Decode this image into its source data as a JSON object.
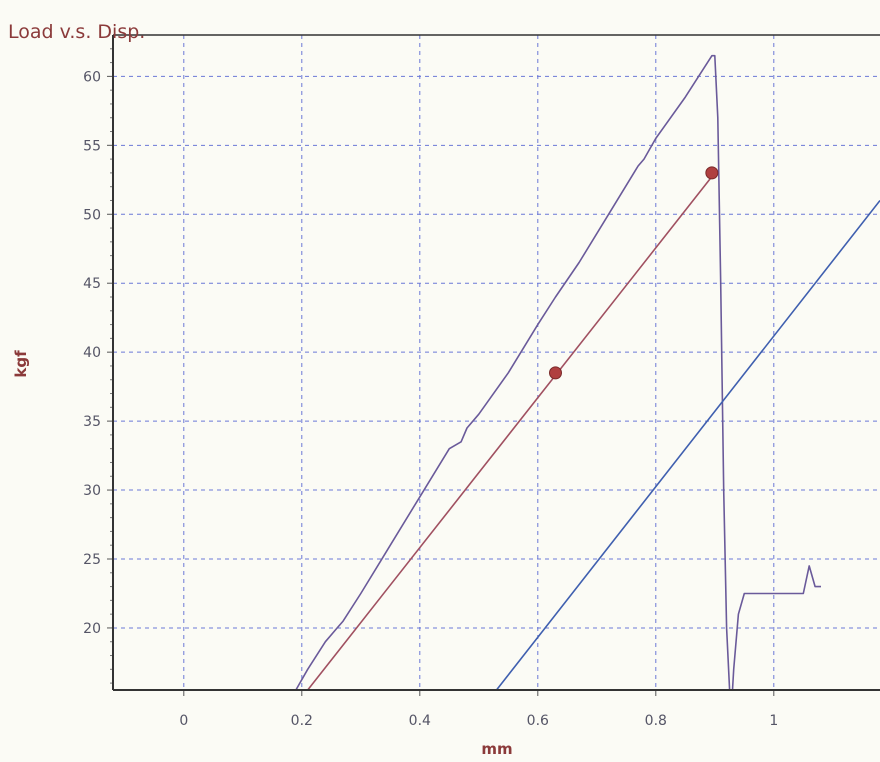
{
  "chart_data": {
    "type": "line",
    "title": "Load v.s. Disp.",
    "xlabel": "mm",
    "ylabel": "kgf",
    "xlim": [
      -0.12,
      1.18
    ],
    "ylim": [
      15.5,
      63
    ],
    "xticks": [
      "0",
      "0.2",
      "0.4",
      "0.6",
      "0.8",
      "1"
    ],
    "xtick_values": [
      0,
      0.2,
      0.4,
      0.6,
      0.8,
      1
    ],
    "yticks": [
      "20",
      "25",
      "30",
      "35",
      "40",
      "45",
      "50",
      "55",
      "60"
    ],
    "ytick_values": [
      20,
      25,
      30,
      35,
      40,
      45,
      50,
      55,
      60
    ],
    "grid": true,
    "series": [
      {
        "color": "#6a5a9a",
        "x": [
          0.19,
          0.21,
          0.24,
          0.26,
          0.27,
          0.3,
          0.35,
          0.4,
          0.45,
          0.47,
          0.48,
          0.5,
          0.55,
          0.6,
          0.63,
          0.67,
          0.72,
          0.77,
          0.78,
          0.8,
          0.85,
          0.895,
          0.9,
          0.905,
          0.91,
          0.915,
          0.92,
          0.925,
          0.93,
          0.932,
          0.94,
          0.95,
          0.97,
          1.0,
          1.03,
          1.05,
          1.06,
          1.07,
          1.08
        ],
        "y": [
          15.5,
          17.0,
          19.0,
          20.0,
          20.5,
          22.5,
          26.0,
          29.5,
          33.0,
          33.5,
          34.5,
          35.5,
          38.5,
          42.0,
          44.0,
          46.5,
          50.0,
          53.5,
          54.0,
          55.5,
          58.5,
          61.5,
          61.5,
          57.0,
          45.0,
          30.0,
          20.0,
          15.5,
          15.5,
          17.0,
          21.0,
          22.5,
          22.5,
          22.5,
          22.5,
          22.5,
          24.5,
          23.0,
          23.0
        ]
      },
      {
        "color": "#3f5faf",
        "x": [
          0.53,
          1.18
        ],
        "y": [
          15.5,
          51.0
        ]
      },
      {
        "color": "#a05060",
        "x": [
          0.21,
          0.9
        ],
        "y": [
          15.5,
          53.0
        ]
      }
    ],
    "markers": [
      {
        "x": 0.63,
        "y": 38.5,
        "color": "#b04040"
      },
      {
        "x": 0.895,
        "y": 53.0,
        "color": "#b04040"
      }
    ]
  }
}
